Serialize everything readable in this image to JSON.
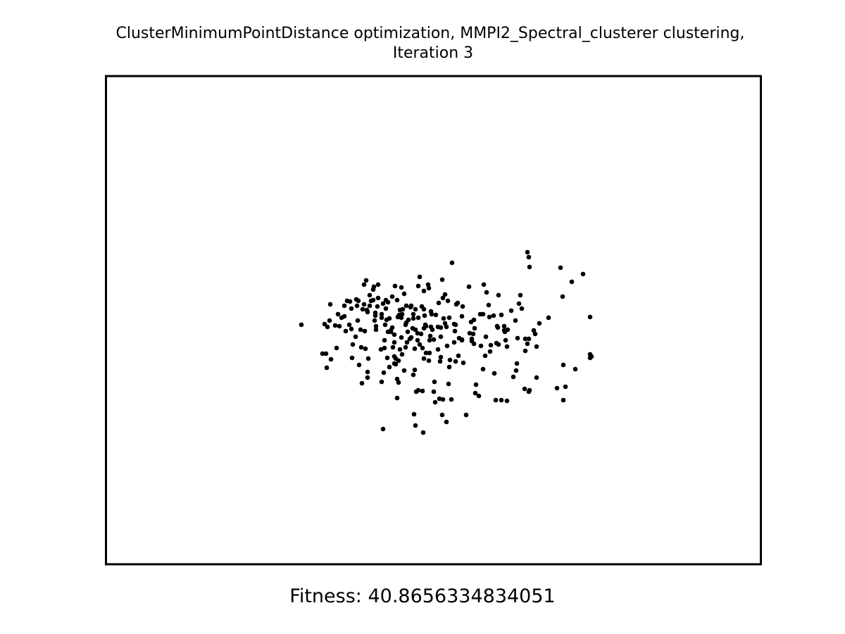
{
  "chart_data": {
    "type": "scatter",
    "title": "ClusterMinimumPointDistance optimization, MMPI2_Spectral_clusterer clustering,",
    "subtitle": "Iteration 3",
    "xlabel": "Fitness: 40.8656334834051",
    "ylabel": "",
    "axes_visible": false,
    "grid": false,
    "xlim": [
      0,
      930
    ],
    "ylim": [
      0,
      693
    ],
    "marker_color": "#000000",
    "frame_color": "#000000",
    "points": [
      [
        278,
        353
      ],
      [
        314,
        414
      ],
      [
        372,
        420
      ],
      [
        444,
        446
      ],
      [
        414,
        430
      ],
      [
        467,
        434
      ],
      [
        570,
        461
      ],
      [
        525,
        450
      ],
      [
        595,
        444
      ],
      [
        602,
        446
      ],
      [
        650,
        460
      ],
      [
        667,
        416
      ],
      [
        688,
        400
      ],
      [
        690,
        398
      ],
      [
        649,
        313
      ],
      [
        646,
        272
      ],
      [
        662,
        292
      ],
      [
        678,
        281
      ],
      [
        568,
        375
      ],
      [
        571,
        360
      ],
      [
        596,
        373
      ],
      [
        612,
        384
      ],
      [
        601,
        257
      ],
      [
        599,
        250
      ],
      [
        602,
        271
      ],
      [
        500,
        322
      ],
      [
        313,
        394
      ],
      [
        328,
        386
      ],
      [
        320,
        402
      ],
      [
        350,
        400
      ],
      [
        351,
        381
      ],
      [
        326,
        354
      ],
      [
        332,
        355
      ],
      [
        315,
        356
      ],
      [
        346,
        353
      ],
      [
        349,
        359
      ],
      [
        368,
        362
      ],
      [
        358,
        347
      ],
      [
        371,
        332
      ],
      [
        372,
        335
      ],
      [
        383,
        340
      ],
      [
        382,
        347
      ],
      [
        384,
        355
      ],
      [
        397,
        353
      ],
      [
        407,
        357
      ],
      [
        405,
        363
      ],
      [
        396,
        386
      ],
      [
        410,
        378
      ],
      [
        410,
        398
      ],
      [
        395,
        421
      ],
      [
        436,
        358
      ],
      [
        420,
        343
      ],
      [
        440,
        331
      ],
      [
        478,
        289
      ],
      [
        492,
        265
      ],
      [
        516,
        299
      ],
      [
        537,
        296
      ],
      [
        541,
        307
      ],
      [
        576,
        333
      ],
      [
        582,
        347
      ],
      [
        585,
        372
      ],
      [
        566,
        361
      ],
      [
        558,
        381
      ],
      [
        555,
        379
      ],
      [
        547,
        382
      ],
      [
        539,
        397
      ],
      [
        524,
        358
      ],
      [
        522,
        366
      ],
      [
        506,
        374
      ],
      [
        495,
        378
      ],
      [
        485,
        383
      ],
      [
        460,
        375
      ],
      [
        472,
        388
      ],
      [
        452,
        401
      ],
      [
        430,
        346
      ],
      [
        415,
        342
      ],
      [
        427,
        350
      ],
      [
        437,
        344
      ],
      [
        454,
        353
      ],
      [
        452,
        358
      ],
      [
        464,
        360
      ],
      [
        462,
        334
      ],
      [
        476,
        370
      ],
      [
        482,
        351
      ],
      [
        482,
        310
      ],
      [
        473,
        322
      ],
      [
        479,
        315
      ],
      [
        472,
        356
      ],
      [
        461,
        369
      ],
      [
        466,
        374
      ],
      [
        448,
        366
      ],
      [
        443,
        375
      ],
      [
        439,
        387
      ],
      [
        426,
        385
      ],
      [
        421,
        395
      ],
      [
        412,
        401
      ],
      [
        410,
        408
      ],
      [
        429,
        363
      ],
      [
        434,
        371
      ],
      [
        426,
        353
      ],
      [
        418,
        332
      ],
      [
        417,
        339
      ],
      [
        424,
        309
      ],
      [
        407,
        313
      ],
      [
        398,
        318
      ],
      [
        420,
        300
      ],
      [
        411,
        298
      ],
      [
        380,
        303
      ],
      [
        381,
        299
      ],
      [
        387,
        315
      ],
      [
        375,
        311
      ],
      [
        383,
        336
      ],
      [
        392,
        343
      ],
      [
        394,
        323
      ],
      [
        401,
        321
      ],
      [
        367,
        324
      ],
      [
        357,
        326
      ],
      [
        347,
        320
      ],
      [
        349,
        330
      ],
      [
        339,
        341
      ],
      [
        369,
        387
      ],
      [
        373,
        401
      ],
      [
        360,
        410
      ],
      [
        364,
        436
      ],
      [
        372,
        428
      ],
      [
        405,
        361
      ],
      [
        403,
        344
      ],
      [
        401,
        363
      ],
      [
        410,
        367
      ],
      [
        420,
        371
      ],
      [
        432,
        373
      ],
      [
        446,
        381
      ],
      [
        455,
        393
      ],
      [
        459,
        404
      ],
      [
        475,
        405
      ],
      [
        488,
        413
      ],
      [
        508,
        407
      ],
      [
        523,
        380
      ],
      [
        540,
        370
      ],
      [
        533,
        383
      ],
      [
        546,
        391
      ],
      [
        557,
        357
      ],
      [
        551,
        340
      ],
      [
        544,
        325
      ],
      [
        558,
        311
      ],
      [
        567,
        363
      ],
      [
        591,
        330
      ],
      [
        587,
        323
      ],
      [
        589,
        311
      ],
      [
        608,
        361
      ],
      [
        599,
        380
      ],
      [
        596,
        390
      ],
      [
        584,
        408
      ],
      [
        583,
        418
      ],
      [
        650,
        410
      ],
      [
        653,
        441
      ],
      [
        688,
        342
      ],
      [
        688,
        395
      ],
      [
        612,
        428
      ],
      [
        641,
        443
      ],
      [
        601,
        448
      ],
      [
        507,
        327
      ],
      [
        506,
        341
      ],
      [
        476,
        357
      ],
      [
        480,
        344
      ],
      [
        463,
        338
      ],
      [
        449,
        327
      ],
      [
        444,
        343
      ],
      [
        437,
        338
      ],
      [
        433,
        328
      ],
      [
        452,
        305
      ],
      [
        444,
        298
      ],
      [
        458,
        296
      ],
      [
        459,
        301
      ],
      [
        446,
        285
      ],
      [
        452,
        331
      ],
      [
        462,
        356
      ],
      [
        469,
        339
      ],
      [
        488,
        343
      ],
      [
        495,
        352
      ],
      [
        496,
        362
      ],
      [
        502,
        372
      ],
      [
        517,
        365
      ],
      [
        519,
        349
      ],
      [
        523,
        346
      ],
      [
        532,
        338
      ],
      [
        545,
        342
      ],
      [
        556,
        355
      ],
      [
        562,
        339
      ],
      [
        566,
        355
      ],
      [
        453,
        340
      ],
      [
        455,
        355
      ],
      [
        440,
        360
      ],
      [
        443,
        365
      ],
      [
        434,
        326
      ],
      [
        422,
        331
      ],
      [
        414,
        318
      ],
      [
        387,
        296
      ],
      [
        370,
        290
      ],
      [
        367,
        296
      ],
      [
        356,
        317
      ],
      [
        359,
        319
      ],
      [
        339,
        326
      ],
      [
        343,
        319
      ],
      [
        335,
        343
      ],
      [
        330,
        338
      ],
      [
        319,
        324
      ],
      [
        311,
        352
      ],
      [
        308,
        394
      ],
      [
        392,
        434
      ],
      [
        318,
        347
      ],
      [
        341,
        362
      ],
      [
        355,
        370
      ],
      [
        363,
        385
      ],
      [
        384,
        360
      ],
      [
        396,
        375
      ],
      [
        408,
        385
      ],
      [
        418,
        388
      ],
      [
        428,
        378
      ],
      [
        450,
        386
      ],
      [
        460,
        393
      ],
      [
        476,
        399
      ],
      [
        489,
        403
      ],
      [
        497,
        405
      ],
      [
        520,
        376
      ],
      [
        536,
        338
      ],
      [
        570,
        384
      ],
      [
        439,
        417
      ],
      [
        468,
        463
      ],
      [
        530,
        454
      ],
      [
        497,
        353
      ],
      [
        506,
        375
      ],
      [
        484,
        356
      ],
      [
        501,
        397
      ],
      [
        520,
        373
      ],
      [
        498,
        324
      ],
      [
        486,
        319
      ],
      [
        427,
        326
      ],
      [
        421,
        338
      ],
      [
        398,
        330
      ],
      [
        380,
        318
      ],
      [
        375,
        326
      ],
      [
        365,
        331
      ],
      [
        362,
        360
      ],
      [
        377,
        319
      ],
      [
        386,
        327
      ],
      [
        392,
        338
      ],
      [
        399,
        346
      ],
      [
        391,
        388
      ],
      [
        400,
        400
      ],
      [
        416,
        404
      ],
      [
        403,
        413
      ],
      [
        412,
        409
      ],
      [
        424,
        418
      ],
      [
        437,
        424
      ],
      [
        441,
        448
      ],
      [
        450,
        447
      ],
      [
        466,
        448
      ],
      [
        474,
        458
      ],
      [
        491,
        459
      ],
      [
        512,
        481
      ],
      [
        478,
        481
      ],
      [
        440,
        496
      ],
      [
        451,
        506
      ],
      [
        484,
        491
      ],
      [
        487,
        437
      ],
      [
        479,
        459
      ],
      [
        394,
        501
      ],
      [
        438,
        480
      ],
      [
        414,
        457
      ],
      [
        416,
        435
      ],
      [
        526,
        438
      ],
      [
        536,
        416
      ],
      [
        552,
        422
      ],
      [
        554,
        460
      ],
      [
        562,
        460
      ],
      [
        579,
        427
      ],
      [
        629,
        343
      ],
      [
        616,
        351
      ],
      [
        601,
        373
      ],
      [
        610,
        366
      ]
    ]
  }
}
